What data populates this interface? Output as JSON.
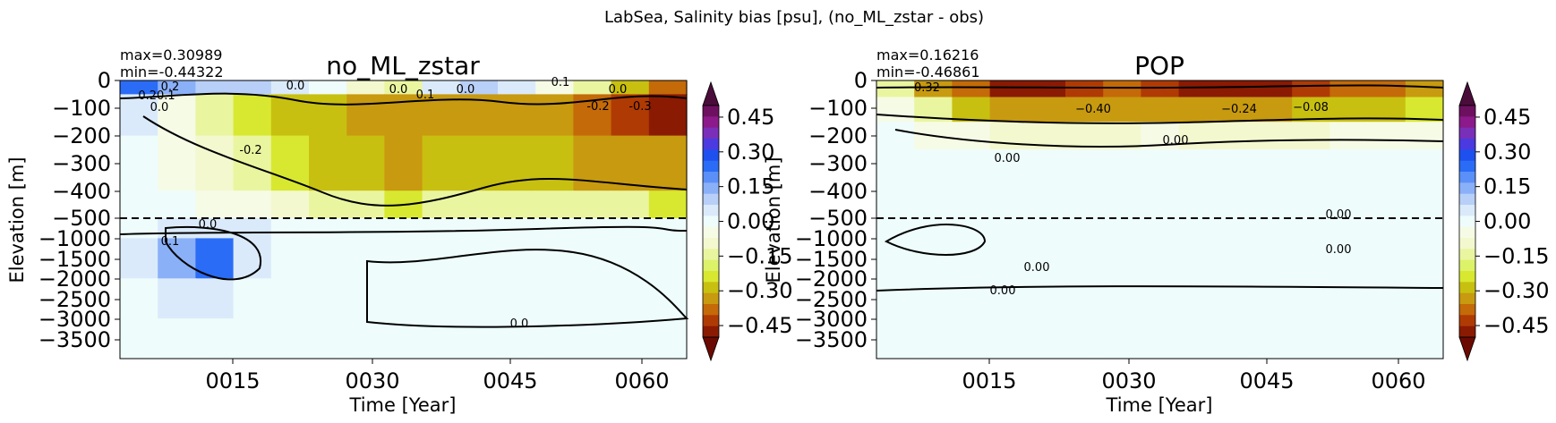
{
  "figure": {
    "suptitle": "LabSea, Salinity bias [psu], (no_ML_zstar - obs)"
  },
  "chart_data": [
    {
      "type": "heatmap",
      "title": "no_ML_zstar",
      "stats": [
        "max=0.30989",
        "min=-0.44322"
      ],
      "xlabel": "Time [Year]",
      "ylabel": "Elevation [m]",
      "xticks": [
        "0015",
        "0030",
        "0045",
        "0060"
      ],
      "yticks": [
        "0",
        "-100",
        "-200",
        "-300",
        "-400",
        "-500",
        "-1000",
        "-1500",
        "-2000",
        "-2500",
        "-3000",
        "-3500"
      ],
      "ytick_labels": [
        "0",
        "−100",
        "−200",
        "−300",
        "−400",
        "−500",
        "−1000",
        "−1500",
        "−2000",
        "−2500",
        "−3000",
        "−3500"
      ],
      "xlim": [
        1,
        62
      ],
      "reference_line": {
        "y": -500,
        "style": "dashed"
      },
      "contour_labels": [
        "0.2",
        "0.20.1",
        "0.0",
        "0.0",
        "0.0",
        "0.1",
        "0.0",
        "0.1",
        "0.0",
        "-0.2",
        "-0.3",
        "-0.2",
        "0.0",
        "0.1",
        "0.0"
      ],
      "bands": [
        {
          "depth": [
            0,
            -50
          ],
          "values": [
            0.2,
            0.15,
            0.1,
            0.1,
            0.05,
            0.0,
            -0.1,
            -0.15,
            0.05,
            0.1,
            0.05,
            -0.05,
            -0.15,
            -0.25,
            -0.35
          ]
        },
        {
          "depth": [
            -50,
            -200
          ],
          "values": [
            0.05,
            -0.05,
            -0.15,
            -0.2,
            -0.25,
            -0.25,
            -0.3,
            -0.3,
            -0.3,
            -0.3,
            -0.3,
            -0.3,
            -0.35,
            -0.4,
            -0.42
          ]
        },
        {
          "depth": [
            -200,
            -400
          ],
          "values": [
            0.0,
            -0.05,
            -0.1,
            -0.15,
            -0.2,
            -0.25,
            -0.25,
            -0.3,
            -0.25,
            -0.25,
            -0.25,
            -0.25,
            -0.3,
            -0.3,
            -0.3
          ]
        },
        {
          "depth": [
            -400,
            -500
          ],
          "values": [
            0.0,
            0.0,
            -0.05,
            -0.05,
            -0.1,
            -0.15,
            -0.15,
            -0.2,
            -0.15,
            -0.15,
            -0.15,
            -0.15,
            -0.15,
            -0.15,
            -0.2
          ]
        },
        {
          "depth": [
            -500,
            -1000
          ],
          "values": [
            0.02,
            0.05,
            0.05,
            0.05,
            0.02,
            0.0,
            0.0,
            0.0,
            0.0,
            0.0,
            0.0,
            0.0,
            0.0,
            0.0,
            0.0
          ]
        },
        {
          "depth": [
            -1000,
            -2000
          ],
          "values": [
            0.05,
            0.15,
            0.2,
            0.05,
            0.0,
            0.0,
            -0.02,
            -0.02,
            -0.02,
            -0.02,
            -0.02,
            -0.02,
            0.0,
            0.0,
            0.0
          ]
        },
        {
          "depth": [
            -2000,
            -3000
          ],
          "values": [
            0.02,
            0.05,
            0.05,
            0.02,
            0.0,
            0.0,
            -0.02,
            -0.02,
            -0.02,
            -0.02,
            -0.02,
            -0.02,
            -0.02,
            0.0,
            0.0
          ]
        },
        {
          "depth": [
            -3000,
            -4000
          ],
          "values": [
            0.02,
            0.02,
            0.02,
            0.02,
            0.02,
            0.02,
            0.02,
            0.02,
            0.02,
            0.02,
            0.02,
            0.02,
            0.02,
            0.02,
            0.02
          ]
        }
      ]
    },
    {
      "type": "heatmap",
      "title": "POP",
      "stats": [
        "max=0.16216",
        "min=-0.46861"
      ],
      "xlabel": "Time [Year]",
      "ylabel": "Elevation [m]",
      "xticks": [
        "0015",
        "0030",
        "0045",
        "0060"
      ],
      "yticks": [
        "0",
        "-100",
        "-200",
        "-300",
        "-400",
        "-500",
        "-1000",
        "-1500",
        "-2000",
        "-2500",
        "-3000",
        "-3500"
      ],
      "ytick_labels": [
        "0",
        "−100",
        "−200",
        "−300",
        "−400",
        "−500",
        "−1000",
        "−1500",
        "−2000",
        "−2500",
        "−3000",
        "−3500"
      ],
      "xlim": [
        1,
        62
      ],
      "reference_line": {
        "y": -500,
        "style": "dashed"
      },
      "contour_labels": [
        "−0.32",
        "−0.40",
        "−0.24",
        "−0.08",
        "0.00",
        "0.00",
        "0.00",
        "0.00",
        "0.00",
        "0.00"
      ],
      "bands": [
        {
          "depth": [
            0,
            -60
          ],
          "values": [
            -0.15,
            -0.3,
            -0.35,
            -0.45,
            -0.45,
            -0.4,
            -0.35,
            -0.4,
            -0.45,
            -0.45,
            -0.45,
            -0.4,
            -0.35,
            -0.35,
            -0.3
          ]
        },
        {
          "depth": [
            -60,
            -150
          ],
          "values": [
            -0.05,
            -0.15,
            -0.25,
            -0.3,
            -0.3,
            -0.3,
            -0.3,
            -0.3,
            -0.3,
            -0.3,
            -0.3,
            -0.25,
            -0.25,
            -0.25,
            -0.2
          ]
        },
        {
          "depth": [
            -150,
            -250
          ],
          "values": [
            -0.02,
            -0.05,
            -0.05,
            -0.08,
            -0.08,
            -0.08,
            -0.08,
            -0.05,
            -0.08,
            -0.08,
            -0.08,
            -0.08,
            -0.05,
            -0.05,
            -0.05
          ]
        },
        {
          "depth": [
            -250,
            -500
          ],
          "values": [
            -0.02,
            -0.02,
            0.0,
            0.02,
            0.02,
            0.02,
            0.02,
            0.0,
            0.02,
            0.02,
            0.02,
            0.02,
            0.0,
            -0.02,
            -0.02
          ]
        },
        {
          "depth": [
            -500,
            -2000
          ],
          "values": [
            -0.02,
            -0.02,
            -0.02,
            -0.02,
            -0.02,
            -0.02,
            -0.02,
            -0.02,
            -0.02,
            -0.02,
            -0.02,
            -0.02,
            -0.02,
            -0.02,
            -0.02
          ]
        },
        {
          "depth": [
            -2000,
            -4000
          ],
          "values": [
            0.01,
            0.01,
            0.01,
            0.01,
            0.01,
            0.01,
            0.01,
            0.01,
            0.01,
            0.01,
            0.01,
            0.01,
            0.01,
            0.01,
            0.01
          ]
        }
      ]
    }
  ],
  "colorbar": {
    "ticks": [
      "0.45",
      "0.30",
      "0.15",
      "0.00",
      "−0.15",
      "−0.30",
      "−0.45"
    ],
    "tick_values": [
      0.45,
      0.3,
      0.15,
      0.0,
      -0.15,
      -0.3,
      -0.45
    ],
    "range": [
      -0.5,
      0.5
    ],
    "extend": "both",
    "colors": [
      "#4a0d3a",
      "#6e1060",
      "#8c1a8a",
      "#7a2fb8",
      "#4a3ae0",
      "#1e50f0",
      "#2a6cf5",
      "#5a90f8",
      "#8ab0f8",
      "#b8cff8",
      "#daeafa",
      "#eefcfc",
      "#f6fbe6",
      "#f4f8cf",
      "#eaf5a0",
      "#dcf268",
      "#d8e830",
      "#c8c010",
      "#c89a10",
      "#c46a08",
      "#b03a04",
      "#8a1a02",
      "#6a0a02"
    ]
  }
}
